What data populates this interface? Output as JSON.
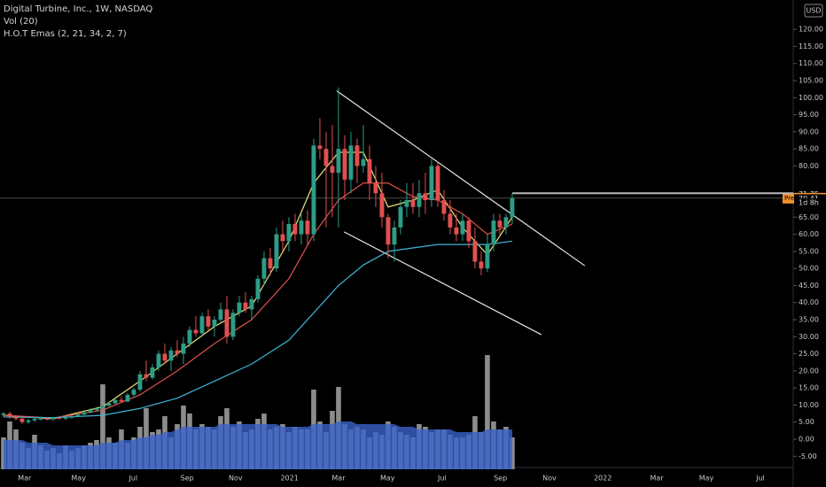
{
  "header": {
    "title": "Digital Turbine, Inc., 1W, NASDAQ",
    "volume_label": "Vol (20)",
    "ema_label": "H.O.T Emas (2, 21, 34, 2, 7)",
    "currency": "USD"
  },
  "chart_data": {
    "type": "candlestick",
    "xlim": [
      -0.57,
      127.3
    ],
    "ylim": [
      -8.3,
      128.6
    ],
    "xticks": [
      {
        "value": 3.4,
        "label": "Mar"
      },
      {
        "value": 12.1,
        "label": "May"
      },
      {
        "value": 20.9,
        "label": "Jul"
      },
      {
        "value": 29.6,
        "label": "Sep"
      },
      {
        "value": 37.4,
        "label": "Nov"
      },
      {
        "value": 46.1,
        "label": "2021"
      },
      {
        "value": 54,
        "label": "Mar"
      },
      {
        "value": 61.9,
        "label": "May"
      },
      {
        "value": 70.7,
        "label": "Jul"
      },
      {
        "value": 80.1,
        "label": "Sep"
      },
      {
        "value": 88,
        "label": "Nov"
      },
      {
        "value": 96.6,
        "label": "2022"
      },
      {
        "value": 105.3,
        "label": "Mar"
      },
      {
        "value": 113.3,
        "label": "May"
      },
      {
        "value": 122,
        "label": "Jul"
      }
    ],
    "yticks": [
      {
        "value": 120,
        "label": "120.00"
      },
      {
        "value": 115,
        "label": "115.00"
      },
      {
        "value": 110,
        "label": "110.00"
      },
      {
        "value": 105,
        "label": "105.00"
      },
      {
        "value": 100,
        "label": "100.00"
      },
      {
        "value": 95,
        "label": "95.00"
      },
      {
        "value": 90,
        "label": "90.00"
      },
      {
        "value": 85,
        "label": "85.00"
      },
      {
        "value": 80,
        "label": "80.00"
      },
      {
        "value": 65,
        "label": "65.00"
      },
      {
        "value": 60,
        "label": "60.00"
      },
      {
        "value": 55,
        "label": "55.00"
      },
      {
        "value": 50,
        "label": "50.00"
      },
      {
        "value": 45,
        "label": "45.00"
      },
      {
        "value": 40,
        "label": "40.00"
      },
      {
        "value": 35,
        "label": "35.00"
      },
      {
        "value": 30,
        "label": "30.00"
      },
      {
        "value": 25,
        "label": "25.00"
      },
      {
        "value": 20,
        "label": "20.00"
      },
      {
        "value": 15,
        "label": "15.00"
      },
      {
        "value": 10,
        "label": "10.00"
      },
      {
        "value": 5,
        "label": "5.00"
      },
      {
        "value": 0,
        "label": "0.00"
      },
      {
        "value": -5,
        "label": "-5.00"
      }
    ],
    "up_color": "#2e9c86",
    "down_color": "#e0504f",
    "open": [
      7,
      7.5,
      6.5,
      6,
      5,
      5.5,
      6,
      6,
      5.8,
      6.2,
      6,
      6.3,
      6.8,
      7.2,
      7.8,
      8.5,
      9,
      9.8,
      10.5,
      11.5,
      11,
      13,
      14.5,
      19,
      18,
      21,
      25,
      23,
      26,
      25,
      28,
      32,
      31,
      36,
      33,
      35,
      38,
      30,
      37,
      40,
      38,
      41,
      47,
      53,
      50,
      60,
      58,
      63,
      60,
      64,
      60,
      86,
      85,
      80,
      78,
      85,
      76,
      86,
      80,
      82,
      75,
      72,
      65,
      57,
      62,
      68,
      70,
      68,
      72,
      70,
      80,
      70,
      66,
      62,
      60,
      64,
      58,
      52,
      50,
      57,
      64,
      62,
      65
    ],
    "high": [
      8,
      8,
      7,
      6.5,
      6,
      6.5,
      6.5,
      6.5,
      6.5,
      6.8,
      6.5,
      7,
      7.5,
      8,
      9,
      9.5,
      10,
      11,
      12,
      12.5,
      13.5,
      15,
      20,
      23,
      22,
      26,
      28,
      27,
      29,
      30,
      33,
      36,
      37,
      38,
      36,
      40,
      42,
      38,
      42,
      43,
      42,
      48,
      55,
      56,
      62,
      64,
      65,
      66,
      66,
      67,
      88,
      94,
      90,
      92,
      103,
      89,
      90,
      88,
      92,
      86,
      80,
      78,
      66,
      64,
      70,
      75,
      75,
      76,
      78,
      82,
      81,
      73,
      70,
      66,
      66,
      65,
      62,
      55,
      60,
      66,
      66,
      66,
      72
    ],
    "low": [
      6.5,
      6,
      5.5,
      4.5,
      4.5,
      5,
      5.5,
      5.5,
      5.5,
      5.8,
      5.6,
      6,
      6.5,
      7,
      7.5,
      8,
      8.5,
      9.5,
      10,
      10.8,
      10.8,
      12.5,
      14,
      17,
      17.5,
      20,
      22,
      20,
      24,
      22,
      27,
      30,
      30,
      32,
      30,
      34,
      28,
      29,
      36,
      37,
      35,
      40,
      45,
      48,
      49,
      55,
      55,
      58,
      57,
      57,
      58,
      82,
      62,
      65,
      62,
      70,
      72,
      75,
      78,
      70,
      68,
      62,
      53,
      52,
      60,
      65,
      66,
      65,
      66,
      68,
      68,
      64,
      60,
      58,
      58,
      56,
      50,
      48,
      49,
      55,
      60,
      60,
      63
    ],
    "close": [
      7.5,
      6.5,
      6,
      5,
      5.5,
      6,
      6,
      5.8,
      6.2,
      6,
      6.3,
      6.8,
      7.2,
      7.8,
      8.5,
      9,
      9.8,
      10.5,
      11.5,
      11,
      13,
      14.5,
      19,
      18,
      21,
      25,
      23,
      26,
      25,
      28,
      32,
      31,
      36,
      33,
      35,
      38,
      30,
      37,
      40,
      38,
      41,
      47,
      53,
      50,
      60,
      58,
      63,
      60,
      64,
      60,
      86,
      85,
      80,
      78,
      85,
      76,
      86,
      80,
      82,
      75,
      72,
      65,
      57,
      62,
      68,
      70,
      68,
      72,
      70,
      80,
      70,
      66,
      62,
      60,
      64,
      58,
      52,
      50,
      57,
      64,
      62,
      65,
      70.57
    ],
    "volume": [
      1.2,
      1.8,
      1.5,
      1.0,
      0.8,
      1.3,
      0.9,
      0.7,
      0.8,
      0.6,
      0.9,
      0.7,
      0.8,
      0.9,
      1.0,
      1.1,
      3.2,
      1.2,
      1.0,
      1.5,
      1.0,
      1.2,
      1.6,
      2.3,
      1.4,
      1.5,
      2.0,
      1.2,
      1.7,
      2.4,
      2.1,
      1.5,
      1.7,
      1.6,
      1.5,
      2.0,
      2.3,
      1.6,
      1.8,
      1.4,
      1.5,
      1.9,
      2.1,
      1.5,
      1.6,
      1.7,
      1.4,
      1.6,
      1.5,
      1.5,
      3.0,
      1.8,
      1.4,
      2.2,
      3.1,
      1.7,
      1.5,
      1.6,
      1.5,
      1.2,
      1.4,
      1.3,
      1.8,
      1.6,
      1.4,
      1.3,
      1.2,
      1.7,
      1.6,
      1.4,
      1.5,
      1.5,
      1.3,
      1.2,
      1.2,
      1.3,
      2.0,
      1.4,
      4.3,
      1.8,
      1.5,
      1.6,
      1.2
    ],
    "volume_ma": [
      1.1,
      1.1,
      1.1,
      1.1,
      1.0,
      1.0,
      1.0,
      1.0,
      0.9,
      0.9,
      0.9,
      0.9,
      0.9,
      0.9,
      0.9,
      0.9,
      1.0,
      1.0,
      1.0,
      1.1,
      1.1,
      1.1,
      1.2,
      1.2,
      1.3,
      1.3,
      1.4,
      1.4,
      1.5,
      1.6,
      1.6,
      1.6,
      1.6,
      1.6,
      1.6,
      1.7,
      1.7,
      1.7,
      1.7,
      1.7,
      1.7,
      1.7,
      1.7,
      1.7,
      1.7,
      1.6,
      1.6,
      1.6,
      1.6,
      1.6,
      1.7,
      1.7,
      1.7,
      1.7,
      1.8,
      1.8,
      1.8,
      1.7,
      1.7,
      1.7,
      1.7,
      1.7,
      1.7,
      1.7,
      1.6,
      1.6,
      1.6,
      1.5,
      1.5,
      1.5,
      1.5,
      1.5,
      1.5,
      1.4,
      1.4,
      1.4,
      1.4,
      1.4,
      1.5,
      1.5,
      1.5,
      1.5,
      1.5
    ],
    "vlim": [
      0,
      5
    ],
    "volume_color": "#8c8c8c",
    "volume_ma_color": "#3a63c9",
    "ema": {
      "x": [
        0,
        8,
        16,
        22,
        28,
        34,
        40,
        46,
        50,
        54,
        58,
        62,
        66,
        70,
        74,
        78,
        82
      ],
      "series": [
        {
          "color": "#e8e27a",
          "values": [
            7,
            6,
            9.5,
            17,
            25,
            33,
            39,
            58,
            75,
            84,
            84,
            68,
            70,
            73,
            62,
            54,
            65
          ]
        },
        {
          "color": "#e0504f",
          "values": [
            7,
            6.2,
            8.5,
            13,
            20,
            28,
            35,
            47,
            60,
            70,
            75,
            75,
            71,
            70,
            66,
            60,
            63
          ]
        },
        {
          "color": "#3fb6d6",
          "values": [
            6.5,
            6.3,
            7,
            9,
            12,
            17,
            22,
            29,
            37,
            45,
            51,
            55,
            56,
            57,
            57,
            57,
            58
          ]
        }
      ]
    },
    "trendlines": [
      {
        "x": [
          53.7,
          93.7
        ],
        "y": [
          102,
          50.8
        ]
      },
      {
        "x": [
          54.9,
          86.7
        ],
        "y": [
          60.7,
          30.6
        ]
      }
    ],
    "price_labels": [
      {
        "value": 72,
        "label": "72.00"
      },
      {
        "value": 71.75,
        "label": "71.75"
      },
      {
        "value": 70.57,
        "label": "70.57",
        "tag": "Pre",
        "color": "#f0902a"
      },
      {
        "value": 70.41,
        "label": "70.41"
      },
      {
        "value": 69.2,
        "label": "1d 8h"
      }
    ]
  }
}
